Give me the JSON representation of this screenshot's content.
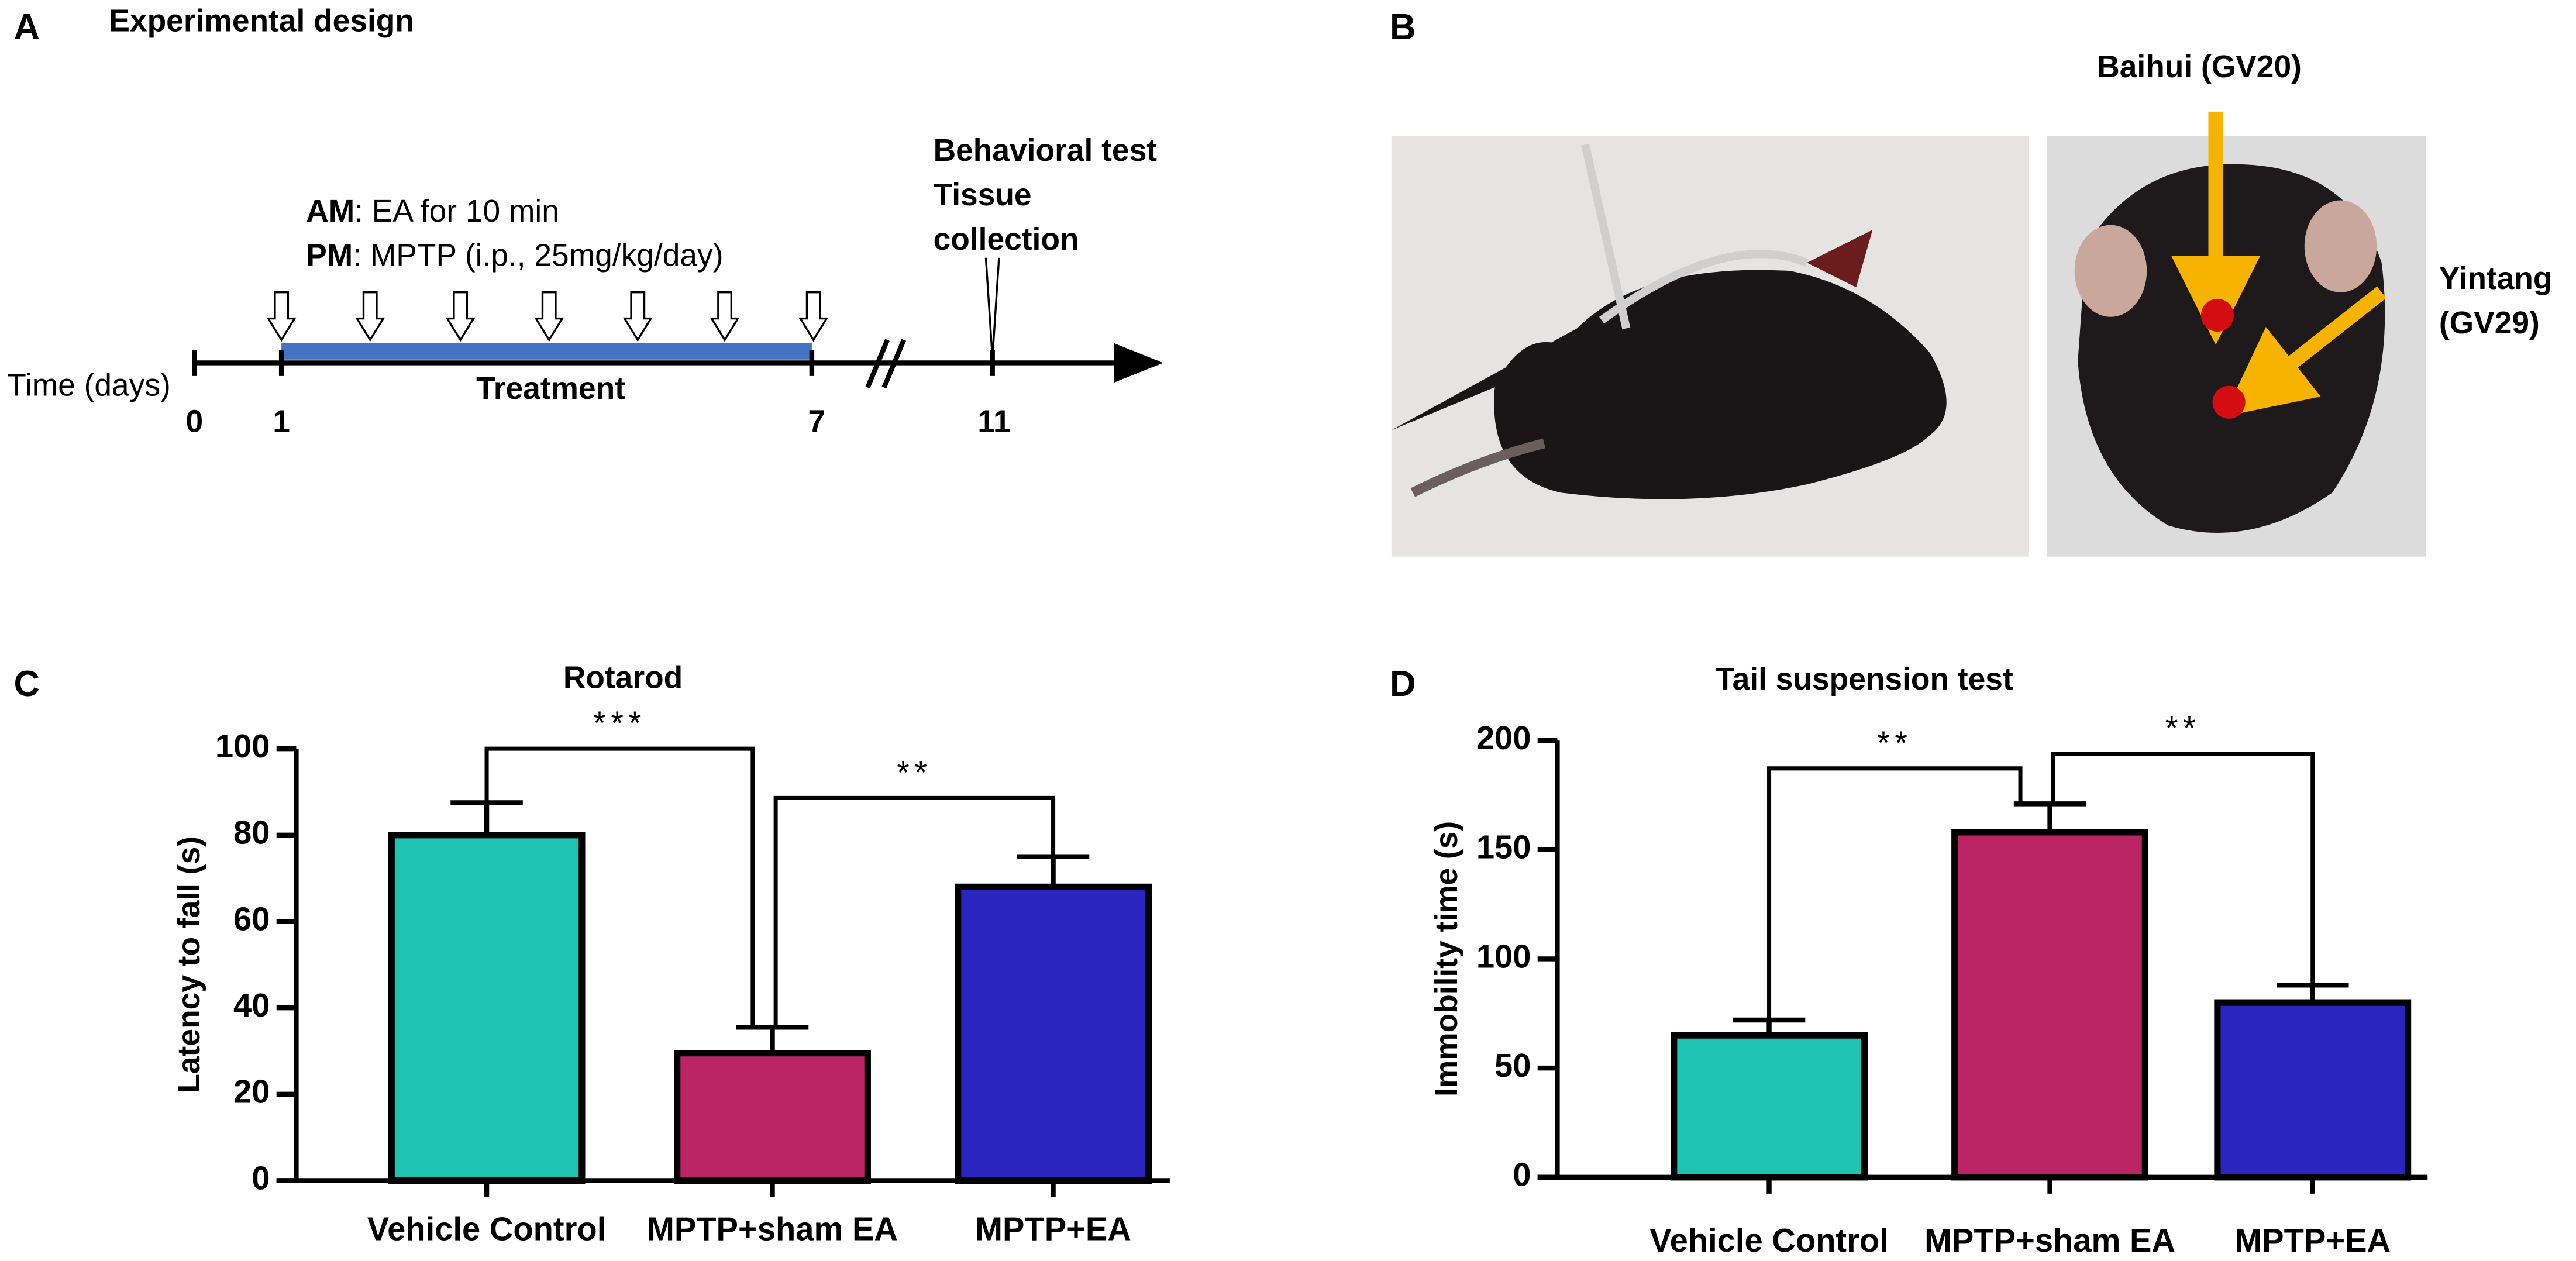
{
  "panels": {
    "a": {
      "label": "A",
      "title": "Experimental design",
      "am_key": "AM",
      "am_text": ": EA for 10 min",
      "pm_key": "PM",
      "pm_text": ": MPTP (i.p., 25mg/kg/day)",
      "endpoint_lines": [
        "Behavioral test",
        "Tissue",
        "collection"
      ],
      "axis_label": "Time (days)",
      "treatment_label": "Treatment",
      "day_labels": [
        "0",
        "1",
        "7",
        "11"
      ]
    },
    "b": {
      "label": "B",
      "point1": "Baihui (GV20)",
      "point2_lines": [
        "Yintang",
        "(GV29)"
      ]
    },
    "c": {
      "label": "C"
    },
    "d": {
      "label": "D"
    }
  },
  "chart_data": [
    {
      "type": "bar",
      "title": "Rotarod",
      "y_label": "Latency to fall (s)",
      "categories": [
        "Vehicle Control",
        "MPTP+sham EA",
        "MPTP+EA"
      ],
      "values": [
        80,
        29.5,
        68
      ],
      "errors": [
        7.5,
        6,
        7
      ],
      "colors": [
        "#1fc3b1",
        "#bb2564",
        "#2a24c1"
      ],
      "ylim": [
        0,
        100
      ],
      "yticks": [
        0,
        20,
        40,
        60,
        80,
        100
      ],
      "significance": [
        "***",
        "**"
      ]
    },
    {
      "type": "bar",
      "title": "Tail suspension test",
      "y_label": "Immobility time (s)",
      "categories": [
        "Vehicle Control",
        "MPTP+sham EA",
        "MPTP+EA"
      ],
      "values": [
        65,
        158,
        80
      ],
      "errors": [
        7,
        13,
        8
      ],
      "colors": [
        "#1fc3b1",
        "#bb2564",
        "#2a24c1"
      ],
      "ylim": [
        0,
        200
      ],
      "yticks": [
        0,
        50,
        100,
        150,
        200
      ],
      "significance": [
        "**",
        "**"
      ]
    }
  ]
}
